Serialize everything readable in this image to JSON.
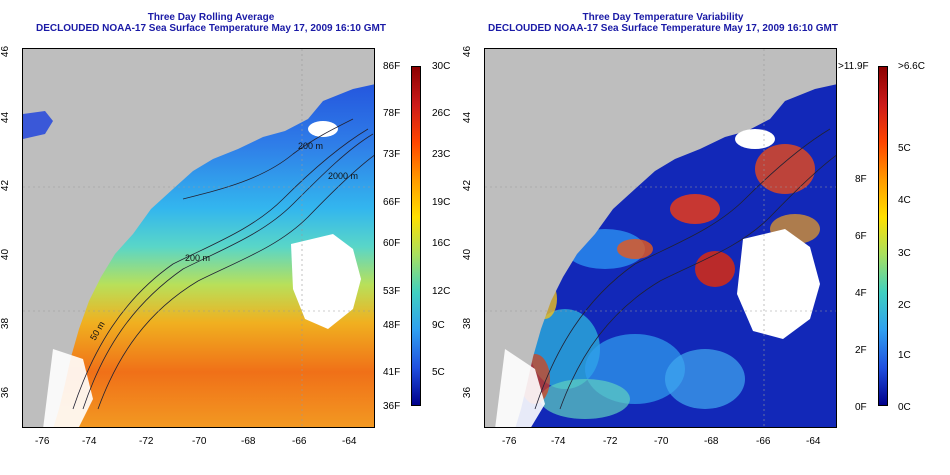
{
  "left": {
    "title_line1": "Three Day Rolling Average",
    "title_line2": "DECLOUDED NOAA-17 Sea Surface Temperature May 17, 2009 16:10 GMT",
    "contour_labels": [
      "200 m",
      "50 m",
      "200 m",
      "2000 m"
    ],
    "colorbar": {
      "f_labels": [
        "86F",
        "78F",
        "73F",
        "66F",
        "60F",
        "53F",
        "48F",
        "41F",
        "36F"
      ],
      "c_labels": [
        "30C",
        "26C",
        "23C",
        "19C",
        "16C",
        "12C",
        "9C",
        "5C"
      ]
    }
  },
  "right": {
    "title_line1": "Three Day Temperature Variability",
    "title_line2": "DECLOUDED NOAA-17 Sea Surface Temperature May 17, 2009 16:10 GMT",
    "colorbar": {
      "f_labels": [
        ">11.9F",
        "8F",
        "6F",
        "4F",
        "2F",
        "0F"
      ],
      "c_labels": [
        ">6.6C",
        "5C",
        "4C",
        "3C",
        "2C",
        "1C",
        "0C"
      ]
    }
  },
  "axes": {
    "lon_labels": [
      "-76",
      "-74",
      "-72",
      "-70",
      "-68",
      "-66",
      "-64"
    ],
    "lat_labels": [
      "46",
      "44",
      "42",
      "40",
      "38",
      "36"
    ]
  }
}
